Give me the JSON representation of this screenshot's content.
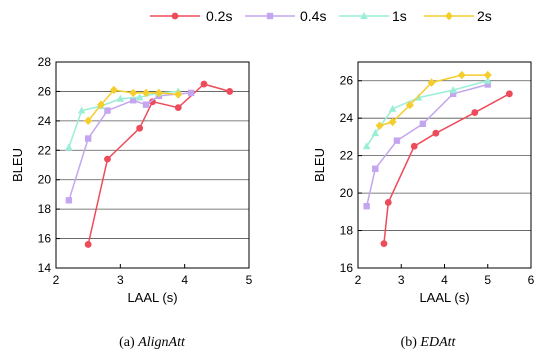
{
  "legend": {
    "placement": "top-center",
    "entries": [
      {
        "label": "0.2s",
        "color": "#ee4b5a",
        "marker": "circle"
      },
      {
        "label": "0.4s",
        "color": "#c3a6ef",
        "marker": "square"
      },
      {
        "label": "1s",
        "color": "#9aeed7",
        "marker": "triangle"
      },
      {
        "label": "2s",
        "color": "#f5cd2c",
        "marker": "diamond"
      }
    ]
  },
  "captions": [
    {
      "prefix": "(a) ",
      "name": "AlignAtt"
    },
    {
      "prefix": "(b) ",
      "name": "EDAtt"
    }
  ],
  "chart_data": [
    {
      "type": "line",
      "xlabel": "LAAL (s)",
      "ylabel": "BLEU",
      "xlim": [
        2,
        5
      ],
      "ylim": [
        14,
        28
      ],
      "xticks": [
        2,
        3,
        4,
        5
      ],
      "yticks": [
        14,
        16,
        18,
        20,
        22,
        24,
        26,
        28
      ],
      "grid": "horizontal",
      "series": [
        {
          "name": "0.2s",
          "x": [
            2.5,
            2.8,
            3.3,
            3.5,
            3.9,
            4.3,
            4.7
          ],
          "y": [
            15.6,
            21.4,
            23.5,
            25.3,
            24.9,
            26.5,
            26.0
          ]
        },
        {
          "name": "0.4s",
          "x": [
            2.2,
            2.5,
            2.8,
            3.2,
            3.4,
            3.6,
            4.1
          ],
          "y": [
            18.6,
            22.8,
            24.7,
            25.4,
            25.1,
            25.7,
            25.9
          ]
        },
        {
          "name": "1s",
          "x": [
            2.2,
            2.4,
            2.7,
            3.0,
            3.3,
            3.6,
            3.9
          ],
          "y": [
            22.2,
            24.7,
            25.0,
            25.5,
            25.6,
            25.9,
            26.0
          ]
        },
        {
          "name": "2s",
          "x": [
            2.5,
            2.7,
            2.9,
            3.2,
            3.4,
            3.6,
            3.9
          ],
          "y": [
            24.0,
            25.1,
            26.1,
            25.9,
            25.9,
            25.9,
            25.8
          ]
        }
      ]
    },
    {
      "type": "line",
      "xlabel": "LAAL (s)",
      "ylabel": "BLEU",
      "xlim": [
        2,
        6
      ],
      "ylim": [
        16,
        27
      ],
      "xticks": [
        2,
        3,
        4,
        5,
        6
      ],
      "yticks": [
        16,
        18,
        20,
        22,
        24,
        26
      ],
      "grid": "horizontal",
      "series": [
        {
          "name": "0.2s",
          "x": [
            2.6,
            2.7,
            3.3,
            3.8,
            4.7,
            5.5
          ],
          "y": [
            17.3,
            19.5,
            22.5,
            23.2,
            24.3,
            25.3
          ]
        },
        {
          "name": "0.4s",
          "x": [
            2.2,
            2.4,
            2.9,
            3.5,
            4.2,
            5.0
          ],
          "y": [
            19.3,
            21.3,
            22.8,
            23.7,
            25.3,
            25.8
          ]
        },
        {
          "name": "1s",
          "x": [
            2.2,
            2.4,
            2.8,
            3.4,
            4.2,
            5.0
          ],
          "y": [
            22.5,
            23.2,
            24.5,
            25.1,
            25.5,
            26.0
          ]
        },
        {
          "name": "2s",
          "x": [
            2.5,
            2.8,
            3.2,
            3.7,
            4.4,
            5.0
          ],
          "y": [
            23.6,
            23.8,
            24.7,
            25.9,
            26.3,
            26.3
          ]
        }
      ]
    }
  ]
}
